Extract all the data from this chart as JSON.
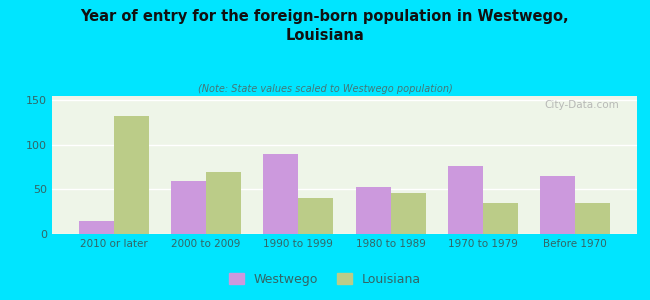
{
  "title": "Year of entry for the foreign-born population in Westwego,\nLouisiana",
  "subtitle": "(Note: State values scaled to Westwego population)",
  "categories": [
    "2010 or later",
    "2000 to 2009",
    "1990 to 1999",
    "1980 to 1989",
    "1970 to 1979",
    "Before 1970"
  ],
  "westwego_values": [
    15,
    59,
    90,
    53,
    76,
    65
  ],
  "louisiana_values": [
    132,
    70,
    40,
    46,
    35,
    35
  ],
  "westwego_color": "#cc99dd",
  "louisiana_color": "#bbcc88",
  "background_outer": "#00e5ff",
  "background_inner": "#eef5e8",
  "ylim": [
    0,
    155
  ],
  "yticks": [
    0,
    50,
    100,
    150
  ],
  "bar_width": 0.38,
  "legend_labels": [
    "Westwego",
    "Louisiana"
  ],
  "watermark": "City-Data.com"
}
